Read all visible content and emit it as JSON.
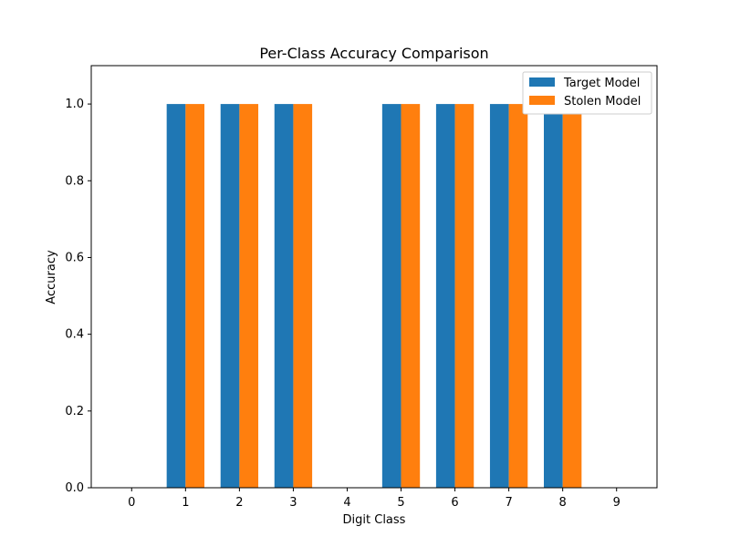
{
  "chart_data": {
    "type": "bar",
    "title": "Per-Class Accuracy Comparison",
    "xlabel": "Digit Class",
    "ylabel": "Accuracy",
    "categories": [
      "0",
      "1",
      "2",
      "3",
      "4",
      "5",
      "6",
      "7",
      "8",
      "9"
    ],
    "series": [
      {
        "name": "Target Model",
        "color": "#1f77b4",
        "values": [
          0,
          1.0,
          1.0,
          1.0,
          0,
          1.0,
          1.0,
          1.0,
          1.0,
          0
        ]
      },
      {
        "name": "Stolen Model",
        "color": "#ff7f0e",
        "values": [
          0,
          1.0,
          1.0,
          1.0,
          0,
          1.0,
          1.0,
          1.0,
          1.0,
          0
        ]
      }
    ],
    "ylim": [
      0,
      1.1
    ],
    "yticks": [
      "0.0",
      "0.2",
      "0.4",
      "0.6",
      "0.8",
      "1.0"
    ],
    "grid": false,
    "legend_position": "top-right"
  }
}
